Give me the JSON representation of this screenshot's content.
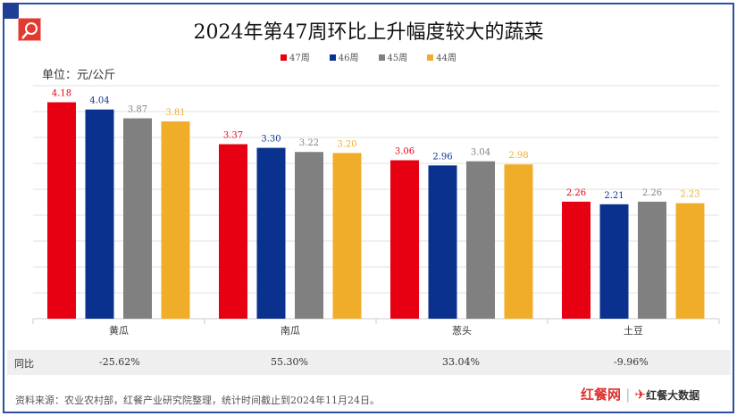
{
  "title": "2024年第47周环比上升幅度较大的蔬菜",
  "unit_label": "单位：元/公斤",
  "chart_data": {
    "type": "bar",
    "title": "2024年第47周环比上升幅度较大的蔬菜",
    "categories": [
      "黄瓜",
      "南瓜",
      "葱头",
      "土豆"
    ],
    "series": [
      {
        "name": "47周",
        "color": "#e60012",
        "values": [
          4.18,
          3.37,
          3.06,
          2.26
        ]
      },
      {
        "name": "46周",
        "color": "#0b318f",
        "values": [
          4.04,
          3.3,
          2.96,
          2.21
        ]
      },
      {
        "name": "45周",
        "color": "#808080",
        "values": [
          3.87,
          3.22,
          3.04,
          2.26
        ]
      },
      {
        "name": "44周",
        "color": "#f0ad2a",
        "values": [
          3.81,
          3.2,
          2.98,
          2.23
        ]
      }
    ],
    "ylabel": "单位：元/公斤",
    "ylim": [
      0,
      4.5
    ],
    "grid": true,
    "legend": "top"
  },
  "table": {
    "label": "同比",
    "values": [
      "-25.62%",
      "55.30%",
      "33.04%",
      "-9.96%"
    ]
  },
  "footer": {
    "source": "资料来源：农业农村部，红餐产业研究院整理，统计时间截止到2024年11月24日。",
    "brand1": "红餐网",
    "brand2": "红餐大数据"
  }
}
